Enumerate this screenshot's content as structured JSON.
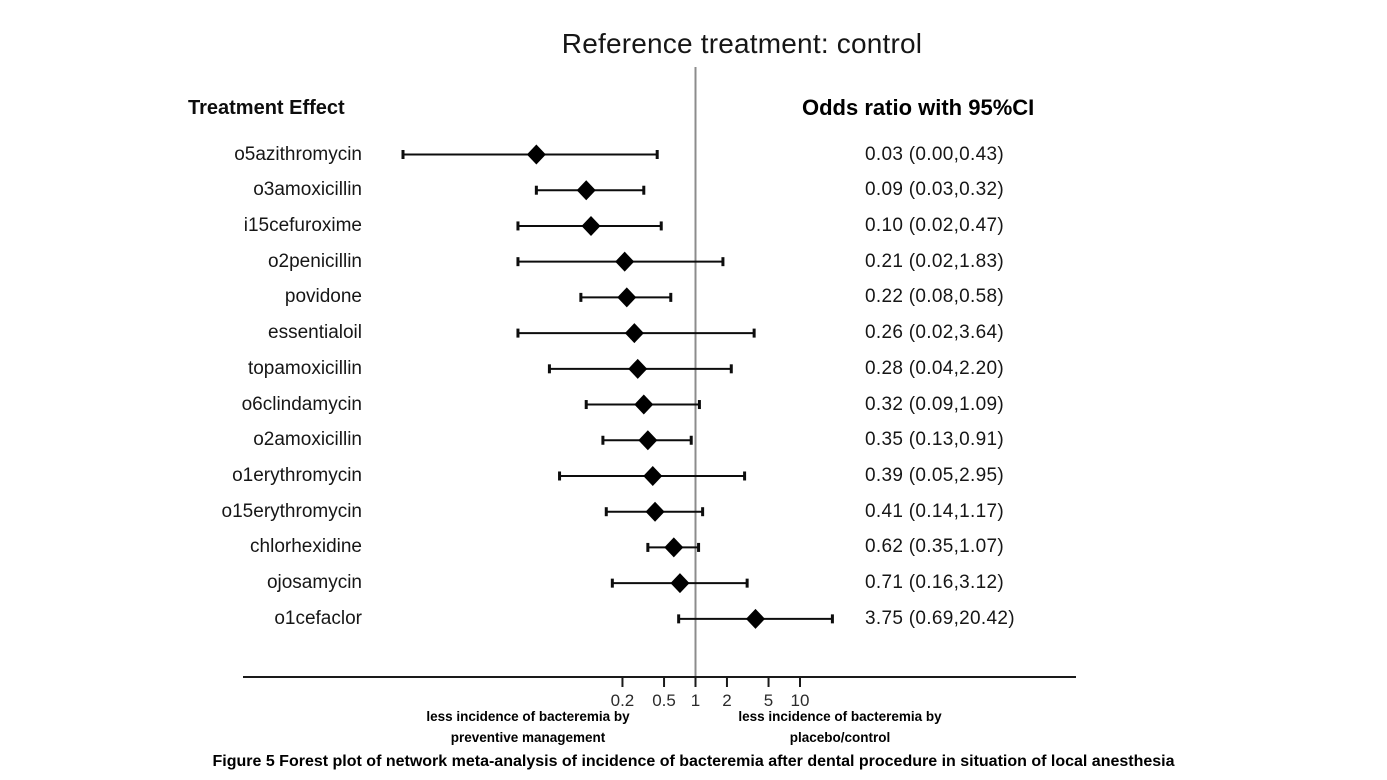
{
  "figure": {
    "title": "Reference treatment: control",
    "left_header": "Treatment Effect",
    "right_header": "Odds ratio with 95%CI",
    "caption": "Figure 5 Forest plot of network meta-analysis of incidence of bacteremia after dental procedure in situation of local anesthesia"
  },
  "chart_data": {
    "type": "forest",
    "title": "Reference treatment: control",
    "x_scale": "log10",
    "x_ticks": [
      0.2,
      0.5,
      1,
      2,
      5,
      10
    ],
    "x_tick_labels": [
      "0.2",
      "0.5",
      "1",
      "2",
      "5",
      "10"
    ],
    "reference_line_value": 1,
    "columns": {
      "left": "Treatment Effect",
      "right": "Odds ratio with 95%CI"
    },
    "rows": [
      {
        "label": "o5azithromycin",
        "or": 0.03,
        "low": 0.0,
        "high": 0.43,
        "text": "0.03 (0.00,0.43)"
      },
      {
        "label": "o3amoxicillin",
        "or": 0.09,
        "low": 0.03,
        "high": 0.32,
        "text": "0.09 (0.03,0.32)"
      },
      {
        "label": "i15cefuroxime",
        "or": 0.1,
        "low": 0.02,
        "high": 0.47,
        "text": "0.10 (0.02,0.47)"
      },
      {
        "label": "o2penicillin",
        "or": 0.21,
        "low": 0.02,
        "high": 1.83,
        "text": "0.21 (0.02,1.83)"
      },
      {
        "label": "povidone",
        "or": 0.22,
        "low": 0.08,
        "high": 0.58,
        "text": "0.22 (0.08,0.58)"
      },
      {
        "label": "essentialoil",
        "or": 0.26,
        "low": 0.02,
        "high": 3.64,
        "text": "0.26 (0.02,3.64)"
      },
      {
        "label": "topamoxicillin",
        "or": 0.28,
        "low": 0.04,
        "high": 2.2,
        "text": "0.28 (0.04,2.20)"
      },
      {
        "label": "o6clindamycin",
        "or": 0.32,
        "low": 0.09,
        "high": 1.09,
        "text": "0.32 (0.09,1.09)"
      },
      {
        "label": "o2amoxicillin",
        "or": 0.35,
        "low": 0.13,
        "high": 0.91,
        "text": "0.35 (0.13,0.91)"
      },
      {
        "label": "o1erythromycin",
        "or": 0.39,
        "low": 0.05,
        "high": 2.95,
        "text": "0.39 (0.05,2.95)"
      },
      {
        "label": "o15erythromycin",
        "or": 0.41,
        "low": 0.14,
        "high": 1.17,
        "text": "0.41 (0.14,1.17)"
      },
      {
        "label": "chlorhexidine",
        "or": 0.62,
        "low": 0.35,
        "high": 1.07,
        "text": "0.62 (0.35,1.07)"
      },
      {
        "label": "ojosamycin",
        "or": 0.71,
        "low": 0.16,
        "high": 3.12,
        "text": "0.71 (0.16,3.12)"
      },
      {
        "label": "o1cefaclor",
        "or": 3.75,
        "low": 0.69,
        "high": 20.42,
        "text": "3.75 (0.69,20.42)"
      }
    ],
    "direction_labels": {
      "left_line1": "less incidence of bacteremia by",
      "left_line2": "preventive management",
      "right_line1": "less incidence of bacteremia by",
      "right_line2": "placebo/control"
    },
    "colors": {
      "marker": "#000000",
      "ci_line": "#0d0d0d",
      "reference_line": "#8c8c8c",
      "axis": "#1a1a1a",
      "text": "#161616"
    },
    "layout_hints": {
      "legend": "none",
      "grid": false,
      "ci_lower_clamped_at_axis_min": [
        "o5azithromycin"
      ]
    }
  }
}
